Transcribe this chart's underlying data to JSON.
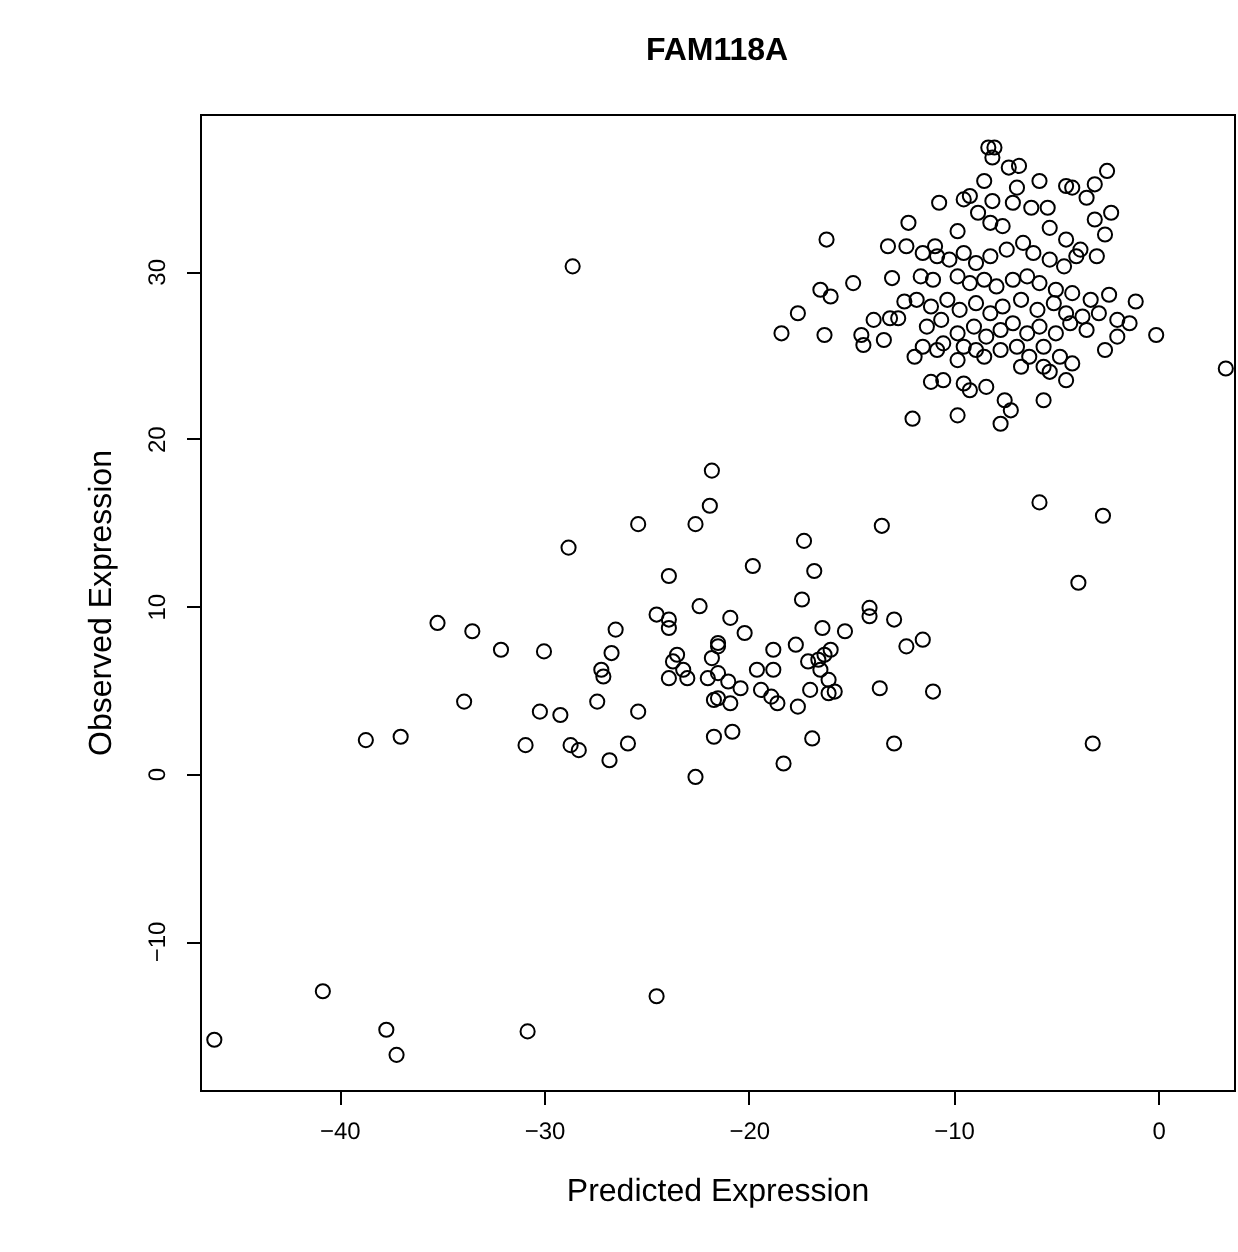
{
  "chart_data": {
    "type": "scatter",
    "title": "FAM118A",
    "xlabel": "Predicted Expression",
    "ylabel": "Observed Expression",
    "xlim": [
      -46.8,
      3.7
    ],
    "ylim": [
      -18.9,
      39.4
    ],
    "xticks": [
      -40,
      -30,
      -20,
      -10,
      0
    ],
    "yticks": [
      -10,
      0,
      10,
      20,
      30
    ],
    "grid": false,
    "marker": "circle",
    "color": "#000000",
    "x": [
      -8.3,
      -8.0,
      -8.1,
      -7.3,
      -6.8,
      -2.5,
      -8.5,
      -5.8,
      -6.9,
      -4.5,
      -4.2,
      -3.1,
      -3.5,
      -10.7,
      -9.5,
      -9.2,
      -8.1,
      -7.1,
      -6.2,
      -5.4,
      -8.8,
      -2.3,
      -3.1,
      -12.2,
      -16.2,
      -9.8,
      -8.2,
      -7.6,
      -5.3,
      -2.6,
      -13.2,
      -12.3,
      -10.9,
      -4.5,
      -3.8,
      -3.0,
      -14.9,
      -13.0,
      -16.5,
      -16.0,
      -17.6,
      -18.4,
      -16.3,
      -14.5,
      -14.4,
      -13.9,
      -13.4,
      -13.1,
      -12.7,
      -12.4,
      -2.4,
      -1.1,
      -2.0,
      -1.4,
      -2.0,
      -0.1,
      -2.6,
      3.3,
      -12.0,
      -9.8,
      -7.7,
      -7.2,
      -5.6,
      -11.1,
      -10.5,
      -9.5,
      -9.2,
      -8.4,
      -7.5,
      -4.5,
      -5.3,
      -4.8,
      -4.2,
      -5.6,
      -6.7,
      -11.9,
      -11.5,
      -10.8,
      -9.8,
      -8.5,
      -11.5,
      -10.8,
      -10.2,
      -9.5,
      -8.9,
      -8.2,
      -7.4,
      -6.6,
      -6.1,
      -5.3,
      -4.6,
      -4.0,
      -11.6,
      -11.0,
      -9.8,
      -9.2,
      -8.5,
      -7.9,
      -7.1,
      -6.4,
      -5.8,
      -5.0,
      -4.2,
      -3.3,
      -11.8,
      -11.1,
      -10.3,
      -9.7,
      -8.9,
      -8.2,
      -7.6,
      -6.7,
      -5.9,
      -5.1,
      -4.5,
      -3.7,
      -2.9,
      -11.3,
      -10.6,
      -9.8,
      -9.0,
      -8.4,
      -7.7,
      -7.1,
      -6.4,
      -5.8,
      -5.0,
      -4.3,
      -3.5,
      -10.5,
      -9.5,
      -8.9,
      -7.7,
      -6.9,
      -6.3,
      -5.6,
      -21.8,
      -21.9,
      -25.4,
      -22.6,
      -28.8,
      -23.9,
      -22.4,
      -24.5,
      -23.9,
      -23.9,
      -35.2,
      -33.5,
      -32.1,
      -30.0,
      -26.5,
      -26.7,
      -27.2,
      -27.1,
      -23.5,
      -23.7,
      -23.2,
      -23.9,
      -23.0,
      -22.0,
      -33.9,
      -30.2,
      -29.2,
      -27.4,
      -25.4,
      -38.7,
      -37.0,
      -30.9,
      -28.7,
      -28.3,
      -25.9,
      -26.8,
      -22.6,
      -21.7,
      -21.7,
      -21.5,
      -17.3,
      -13.5,
      -19.8,
      -16.8,
      -17.4,
      -20.9,
      -20.2,
      -16.4,
      -15.3,
      -14.1,
      -14.1,
      -12.9,
      -12.3,
      -11.5,
      -21.5,
      -18.8,
      -17.7,
      -21.8,
      -16.0,
      -16.3,
      -16.6,
      -17.1,
      -19.6,
      -18.8,
      -21.5,
      -21.0,
      -16.5,
      -16.1,
      -20.4,
      -19.4,
      -18.9,
      -21.5,
      -20.9,
      -18.6,
      -17.6,
      -17.0,
      -16.1,
      -15.8,
      -13.6,
      -11.0,
      -20.8,
      -16.9,
      -12.9,
      -18.3,
      -5.8,
      -2.7,
      -3.9,
      -3.2,
      -28.6,
      -46.1,
      -40.8,
      -37.7,
      -37.2,
      -30.8,
      -24.5
    ],
    "values": [
      37.4,
      37.4,
      36.8,
      36.2,
      36.3,
      36.0,
      35.4,
      35.4,
      35.0,
      35.1,
      35.0,
      35.2,
      34.4,
      34.1,
      34.3,
      34.5,
      34.2,
      34.1,
      33.8,
      33.8,
      33.5,
      33.5,
      33.1,
      32.9,
      31.9,
      32.4,
      32.9,
      32.7,
      32.6,
      32.2,
      31.5,
      31.5,
      31.5,
      31.9,
      31.3,
      30.9,
      29.3,
      29.6,
      28.9,
      28.5,
      27.5,
      26.3,
      26.2,
      26.2,
      25.6,
      27.1,
      25.9,
      27.2,
      27.2,
      28.2,
      28.6,
      28.2,
      27.1,
      26.9,
      26.1,
      26.2,
      25.3,
      24.2,
      21.2,
      21.4,
      20.9,
      21.7,
      22.3,
      23.4,
      23.5,
      23.3,
      22.9,
      23.1,
      22.3,
      23.5,
      24.0,
      24.9,
      24.5,
      24.3,
      24.3,
      24.9,
      25.5,
      25.3,
      24.7,
      24.9,
      31.1,
      30.9,
      30.7,
      31.1,
      30.5,
      30.9,
      31.3,
      31.7,
      31.1,
      30.7,
      30.3,
      30.9,
      29.7,
      29.5,
      29.7,
      29.3,
      29.5,
      29.1,
      29.5,
      29.7,
      29.3,
      28.9,
      28.7,
      28.3,
      28.3,
      27.9,
      28.3,
      27.7,
      28.1,
      27.5,
      27.9,
      28.3,
      27.7,
      28.1,
      27.5,
      27.3,
      27.5,
      26.7,
      27.1,
      26.3,
      26.7,
      26.1,
      26.5,
      26.9,
      26.3,
      26.7,
      26.3,
      26.9,
      26.5,
      25.7,
      25.5,
      25.3,
      25.3,
      25.5,
      24.9,
      25.5,
      18.1,
      16.0,
      14.9,
      14.9,
      13.5,
      11.8,
      10.0,
      9.5,
      9.2,
      8.7,
      9.0,
      8.5,
      7.4,
      7.3,
      8.6,
      7.2,
      6.2,
      5.8,
      7.1,
      6.7,
      6.2,
      5.7,
      5.7,
      5.7,
      4.3,
      3.7,
      3.5,
      4.3,
      3.7,
      2.0,
      2.2,
      1.7,
      1.7,
      1.4,
      1.8,
      0.8,
      -0.2,
      4.4,
      2.2,
      7.6,
      13.9,
      14.8,
      12.4,
      12.1,
      10.4,
      9.3,
      8.4,
      8.7,
      8.5,
      9.9,
      9.4,
      9.2,
      7.6,
      8.0,
      7.8,
      7.4,
      7.7,
      6.9,
      7.4,
      7.1,
      6.8,
      6.7,
      6.2,
      6.2,
      6.0,
      5.5,
      6.2,
      5.6,
      5.1,
      5.0,
      4.6,
      4.5,
      4.2,
      4.2,
      4.0,
      5.0,
      4.8,
      4.9,
      5.1,
      4.9,
      2.5,
      2.1,
      1.8,
      0.6,
      16.2,
      15.4,
      11.4,
      1.8,
      30.3,
      -15.9,
      -13.0,
      -15.3,
      -16.8,
      -15.4,
      -13.3
    ]
  }
}
